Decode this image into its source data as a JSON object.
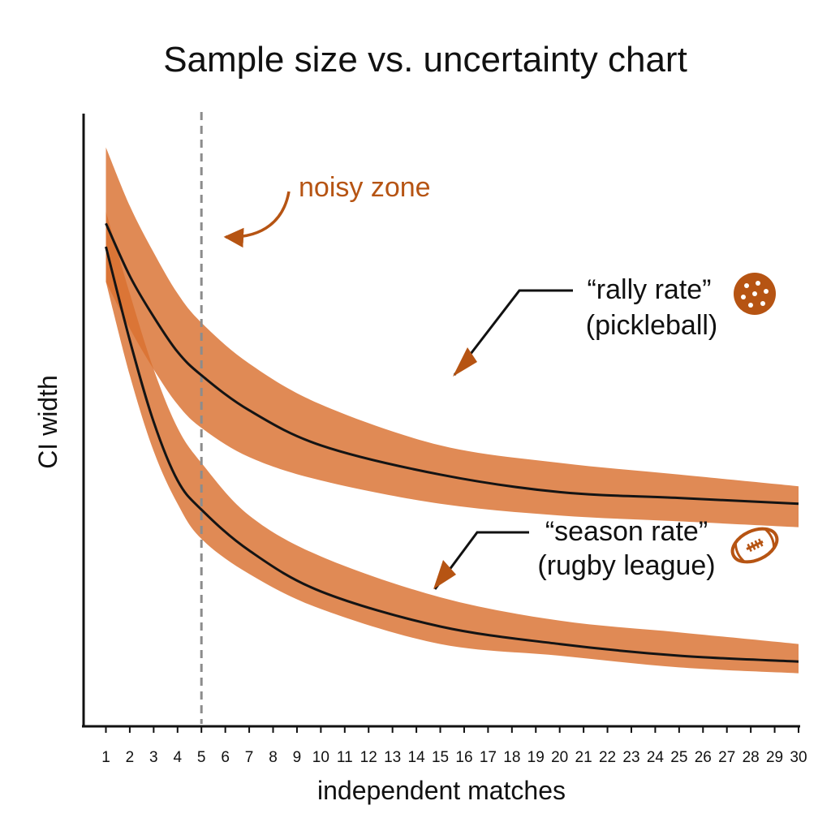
{
  "chart_data": {
    "type": "line",
    "title": "Sample size vs. uncertainty chart",
    "xlabel": "independent matches",
    "ylabel": "CI width",
    "x_ticks": [
      "1",
      "2",
      "3",
      "4",
      "5",
      "6",
      "7",
      "8",
      "9",
      "10",
      "11",
      "12",
      "13",
      "14",
      "15",
      "16",
      "17",
      "18",
      "19",
      "20",
      "21",
      "22",
      "23",
      "24",
      "25",
      "26",
      "27",
      "28",
      "29",
      "30"
    ],
    "xlim": [
      0.1,
      30
    ],
    "ylim": [
      0,
      1
    ],
    "grid": false,
    "legend": "none",
    "reference_line": {
      "x": 5,
      "style": "dashed",
      "label": "noisy zone"
    },
    "x": [
      1,
      2,
      3,
      4,
      5,
      7,
      10,
      15,
      20,
      25,
      30
    ],
    "series": [
      {
        "id": "rally",
        "label_line1": "“rally rate”",
        "label_line2": "(pickleball)",
        "icon": "pickleball-icon",
        "mean": [
          0.84,
          0.75,
          0.68,
          0.62,
          0.58,
          0.52,
          0.46,
          0.41,
          0.38,
          0.37,
          0.36
        ],
        "lower": [
          0.74,
          0.66,
          0.59,
          0.53,
          0.49,
          0.44,
          0.4,
          0.36,
          0.34,
          0.33,
          0.32
        ],
        "upper": [
          0.97,
          0.87,
          0.79,
          0.72,
          0.67,
          0.6,
          0.53,
          0.46,
          0.43,
          0.41,
          0.39
        ]
      },
      {
        "id": "season",
        "label_line1": "“season rate”",
        "label_line2": "(rugby league)",
        "icon": "rugby-ball-icon",
        "mean": [
          0.8,
          0.64,
          0.5,
          0.4,
          0.35,
          0.28,
          0.21,
          0.15,
          0.12,
          0.1,
          0.09
        ],
        "lower": [
          0.74,
          0.58,
          0.45,
          0.36,
          0.3,
          0.24,
          0.18,
          0.12,
          0.1,
          0.08,
          0.07
        ],
        "upper": [
          0.86,
          0.72,
          0.59,
          0.49,
          0.43,
          0.34,
          0.27,
          0.2,
          0.16,
          0.14,
          0.12
        ]
      }
    ]
  },
  "colors": {
    "band": "#d9702f",
    "band_opacity": "0.82",
    "accent_dark": "#b65413",
    "line": "#141414",
    "axis": "#111111",
    "reference": "#8c8c8c"
  }
}
